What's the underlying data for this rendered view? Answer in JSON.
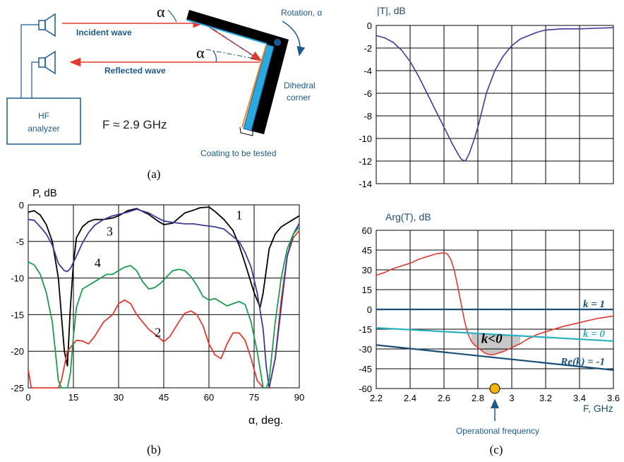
{
  "panel_a": {
    "panel_label": "(a)",
    "alpha": "α",
    "rotation_label": "Rotation, α",
    "incident_label": "Incident wave",
    "reflected_label": "Reflected wave",
    "analyzer_label_1": "HF",
    "analyzer_label_2": "analyzer",
    "frequency_label": "F ≈ 2.9 GHz",
    "dihedral_label_1": "Dihedral",
    "dihedral_label_2": "corner",
    "coating_label": "Coating to be tested",
    "colors": {
      "wave": "#e03a2f",
      "label": "#1a5a8c",
      "device": "#1a5a8c"
    }
  },
  "panel_b_label": "(b)",
  "panel_c_label": "(c)",
  "operational_label": "Operational frequency",
  "chart_data": [
    {
      "id": "b",
      "type": "line",
      "ylabel": "P, dB",
      "xlabel": "α, deg.",
      "xlim": [
        0,
        90
      ],
      "ylim": [
        -25,
        0
      ],
      "xticks": [
        0,
        15,
        30,
        45,
        60,
        75,
        90
      ],
      "yticks": [
        0,
        -5,
        -10,
        -15,
        -20,
        -25
      ],
      "ytick_labels": [
        "0",
        "-5",
        "-10",
        "-15",
        "-20",
        "-25"
      ],
      "grid": true,
      "curve_labels": [
        "1",
        "2",
        "3",
        "4"
      ],
      "series": [
        {
          "label": "1",
          "color": "#000000",
          "x": [
            0,
            2,
            4,
            6,
            8,
            10,
            11,
            12,
            13,
            14,
            15,
            16,
            18,
            20,
            22,
            25,
            28,
            30,
            33,
            36,
            40,
            43,
            45,
            48,
            50,
            52,
            55,
            57,
            60,
            62,
            65,
            68,
            70,
            72,
            75,
            77,
            78,
            79,
            80,
            82,
            84,
            86,
            88,
            90
          ],
          "y": [
            -1,
            -0.8,
            -1.4,
            -2.7,
            -5,
            -10,
            -15,
            -20,
            -22,
            -14,
            -8,
            -4.5,
            -3,
            -2.3,
            -2,
            -2,
            -1.8,
            -1.5,
            -0.8,
            -0.5,
            -1.3,
            -2.2,
            -2.7,
            -2.5,
            -1.8,
            -1.1,
            -0.7,
            -0.4,
            -0.3,
            -0.9,
            -2,
            -3.5,
            -5.5,
            -8,
            -12,
            -14,
            -12,
            -9,
            -6,
            -4,
            -3,
            -2.5,
            -2,
            -1.5
          ]
        },
        {
          "label": "2",
          "color": "#e03a2f",
          "x": [
            0,
            1,
            2,
            4,
            6,
            8,
            10,
            11,
            12,
            13,
            14,
            15,
            16,
            18,
            20,
            22,
            25,
            28,
            30,
            32,
            34,
            36,
            38,
            40,
            43,
            45,
            47,
            50,
            52,
            54,
            56,
            58,
            60,
            62,
            64,
            66,
            68,
            70,
            72,
            74,
            76,
            78,
            79,
            80,
            82,
            84,
            86,
            88,
            90
          ],
          "y": [
            -22.5,
            -25,
            -25,
            -25,
            -25,
            -25,
            -25,
            -24,
            -22,
            -20,
            -19.5,
            -19,
            -18.5,
            -18.6,
            -19,
            -18,
            -16,
            -15,
            -13.5,
            -13,
            -13.5,
            -15,
            -16,
            -17,
            -18,
            -18.7,
            -18,
            -16,
            -14.8,
            -14.5,
            -15,
            -16.5,
            -19,
            -20.5,
            -21,
            -19,
            -17.5,
            -17.5,
            -18.5,
            -21,
            -24,
            -25,
            -25,
            -25,
            -21,
            -13,
            -7,
            -4.5,
            -3.5
          ]
        },
        {
          "label": "3",
          "color": "#3b3b9a",
          "x": [
            0,
            2,
            4,
            6,
            8,
            10,
            12,
            13,
            14,
            16,
            18,
            20,
            22,
            25,
            28,
            30,
            33,
            36,
            40,
            43,
            45,
            48,
            50,
            52,
            55,
            58,
            60,
            62,
            65,
            67,
            70,
            72,
            74,
            76,
            78,
            79,
            80,
            82,
            84,
            86,
            88,
            90
          ],
          "y": [
            -2,
            -2.1,
            -3,
            -4,
            -5.5,
            -8,
            -9,
            -9.1,
            -8.7,
            -7,
            -5.2,
            -3.8,
            -2.8,
            -2,
            -1.5,
            -1.3,
            -1,
            -0.6,
            -1.1,
            -1.8,
            -2.2,
            -2.4,
            -2.5,
            -2.6,
            -2.6,
            -2.8,
            -2.9,
            -3,
            -3.3,
            -4,
            -5,
            -6.5,
            -8.5,
            -12,
            -17,
            -22,
            -25,
            -21,
            -14,
            -7,
            -4,
            -2.5
          ]
        },
        {
          "label": "4",
          "color": "#1c9a4e",
          "x": [
            0,
            2,
            4,
            6,
            8,
            9,
            10,
            11,
            12,
            13,
            14,
            15,
            16,
            18,
            20,
            22,
            24,
            26,
            28,
            30,
            32,
            34,
            36,
            38,
            40,
            42,
            44,
            46,
            48,
            50,
            52,
            54,
            56,
            58,
            60,
            62,
            64,
            66,
            68,
            70,
            72,
            74,
            76,
            78,
            79,
            80,
            82,
            84,
            86,
            88,
            90
          ],
          "y": [
            -7.8,
            -8.2,
            -9.5,
            -12,
            -16,
            -20,
            -24,
            -25,
            -25,
            -25,
            -23,
            -18,
            -14,
            -11.5,
            -11,
            -10.5,
            -10,
            -9.5,
            -9.5,
            -9,
            -8.5,
            -8.3,
            -9,
            -10.5,
            -11.5,
            -11.3,
            -10.7,
            -9.8,
            -9,
            -8.8,
            -9,
            -9.8,
            -11,
            -12.5,
            -13,
            -12.8,
            -13.3,
            -13.8,
            -13.5,
            -13.2,
            -13.6,
            -16,
            -20,
            -25,
            -25,
            -24,
            -16,
            -10,
            -6,
            -4,
            -3
          ]
        }
      ]
    },
    {
      "id": "c-top",
      "type": "line",
      "ylabel": "|T|, dB",
      "xlim": [
        2.2,
        3.6
      ],
      "ylim": [
        -14,
        0
      ],
      "yticks": [
        0,
        -2,
        -4,
        -6,
        -8,
        -10,
        -12,
        -14
      ],
      "ytick_labels": [
        "0",
        "-2",
        "-4",
        "-6",
        "-8",
        "-10",
        "-12",
        "-14"
      ],
      "grid": true,
      "series": [
        {
          "color": "#3b3b9a",
          "x": [
            2.2,
            2.25,
            2.3,
            2.35,
            2.4,
            2.45,
            2.5,
            2.55,
            2.6,
            2.65,
            2.68,
            2.7,
            2.72,
            2.73,
            2.75,
            2.78,
            2.8,
            2.82,
            2.85,
            2.9,
            2.95,
            3.0,
            3.05,
            3.1,
            3.15,
            3.2,
            3.3,
            3.4,
            3.5,
            3.6
          ],
          "y": [
            -0.9,
            -1.1,
            -1.5,
            -2.2,
            -3.2,
            -4.5,
            -6,
            -7.5,
            -9,
            -10.5,
            -11.3,
            -11.8,
            -12,
            -11.9,
            -11.3,
            -10,
            -9,
            -7.8,
            -6,
            -4,
            -2.7,
            -1.8,
            -1.2,
            -0.9,
            -0.6,
            -0.4,
            -0.3,
            -0.3,
            -0.25,
            -0.2
          ]
        }
      ]
    },
    {
      "id": "c-bottom",
      "type": "line",
      "ylabel": "Arg(T), dB",
      "xlabel": "F, GHz",
      "xlim": [
        2.2,
        3.6
      ],
      "ylim": [
        -60,
        60
      ],
      "xticks": [
        2.2,
        2.4,
        2.6,
        2.8,
        3,
        3.2,
        3.4,
        3.6
      ],
      "xtick_labels": [
        "2.2",
        "2.4",
        "2.6",
        "2.8",
        "3",
        "3.2",
        "3.4",
        "3.6"
      ],
      "yticks": [
        60,
        45,
        30,
        15,
        0,
        -15,
        -30,
        -45,
        -60
      ],
      "ytick_labels": [
        "60",
        "45",
        "30",
        "15",
        "0",
        "-15",
        "-30",
        "-45",
        "-60"
      ],
      "grid": true,
      "series": [
        {
          "color": "#e03a2f",
          "x": [
            2.2,
            2.25,
            2.3,
            2.35,
            2.4,
            2.45,
            2.5,
            2.55,
            2.6,
            2.62,
            2.64,
            2.66,
            2.68,
            2.7,
            2.72,
            2.74,
            2.76,
            2.78,
            2.8,
            2.82,
            2.84,
            2.86,
            2.88,
            2.9,
            2.95,
            3.0,
            3.05,
            3.1,
            3.15,
            3.2,
            3.3,
            3.4,
            3.5,
            3.6
          ],
          "y": [
            26,
            28,
            31,
            33,
            35,
            38,
            40,
            42,
            43,
            42,
            38,
            30,
            18,
            5,
            -8,
            -18,
            -24,
            -27,
            -29,
            -31,
            -33,
            -34,
            -34.5,
            -34,
            -32,
            -29,
            -26,
            -22,
            -19,
            -17,
            -13,
            -10,
            -7,
            -5
          ]
        },
        {
          "label": "k = 1",
          "color": "#1a4f7a",
          "x": [
            2.2,
            3.6
          ],
          "y": [
            0,
            0
          ]
        },
        {
          "label": "k = 0",
          "color": "#2bb0c0",
          "x": [
            2.2,
            3.6
          ],
          "y": [
            -14,
            -24
          ]
        },
        {
          "label": "Re(k) = -1",
          "color": "#1a4f7a",
          "x": [
            2.2,
            3.6
          ],
          "y": [
            -27,
            -46
          ]
        }
      ],
      "annotations": [
        "k = 1",
        "k = 0",
        "Re(k) = -1",
        "k<0"
      ],
      "marker_x": 2.9
    }
  ]
}
